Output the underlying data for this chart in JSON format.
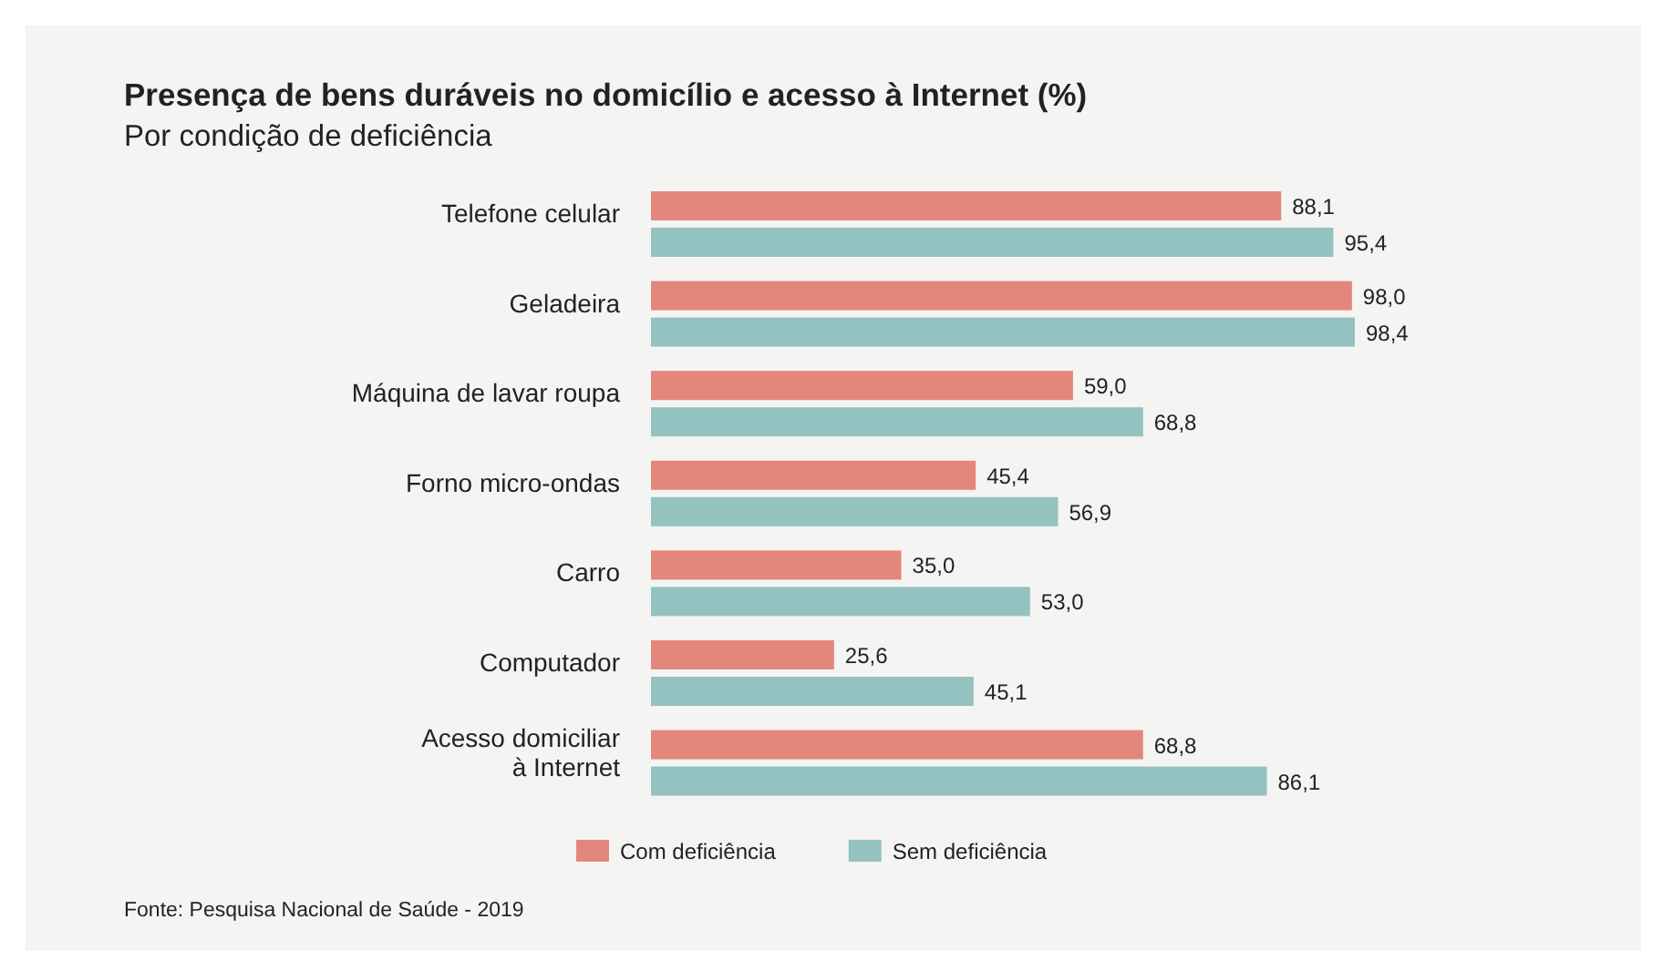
{
  "chart_data": {
    "type": "bar",
    "orientation": "horizontal",
    "title": "Presença de bens duráveis no domicílio e acesso à Internet (%)",
    "subtitle": "Por condição de deficiência",
    "categories": [
      "Telefone celular",
      "Geladeira",
      "Máquina de lavar roupa",
      "Forno micro-ondas",
      "Carro",
      "Computador",
      "Acesso domiciliar à Internet"
    ],
    "series": [
      {
        "name": "Com deficiência",
        "color": "#e3877c",
        "values": [
          88.1,
          98.0,
          59.0,
          45.4,
          35.0,
          25.6,
          68.8
        ],
        "value_labels": [
          "88,1",
          "98,0",
          "59,0",
          "45,4",
          "35,0",
          "25,6",
          "68,8"
        ]
      },
      {
        "name": "Sem deficiência",
        "color": "#93c2c0",
        "values": [
          95.4,
          98.4,
          68.8,
          56.9,
          53.0,
          45.1,
          86.1
        ],
        "value_labels": [
          "95,4",
          "98,4",
          "68,8",
          "56,9",
          "53,0",
          "45,1",
          "86,1"
        ]
      }
    ],
    "legend": "bottom",
    "annotations": [
      "Fonte: Pesquisa Nacional de Saúde - 2019"
    ]
  }
}
